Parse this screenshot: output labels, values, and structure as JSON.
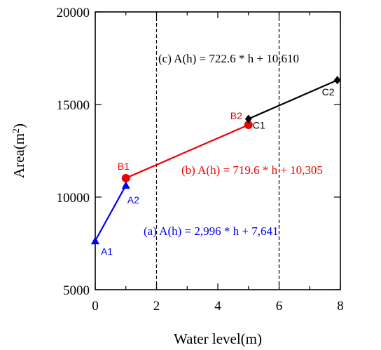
{
  "chart_data": {
    "type": "line",
    "xlabel": "Water level(m)",
    "ylabel_main": "Area(m",
    "ylabel_sup": "2",
    "ylabel_close": ")",
    "xlim": [
      0,
      8
    ],
    "ylim": [
      5000,
      20000
    ],
    "xticks": [
      0,
      2,
      4,
      6,
      8
    ],
    "xticks_minor": [
      1,
      3,
      5,
      7
    ],
    "yticks": [
      5000,
      10000,
      15000,
      20000
    ],
    "xtick_labels": [
      "0",
      "2",
      "4",
      "6",
      "8"
    ],
    "ytick_labels": [
      "5000",
      "10000",
      "15000",
      "20000"
    ],
    "vertical_reference_lines": [
      2,
      6
    ],
    "grid": false,
    "series": [
      {
        "id": "a",
        "color": "#0000ee",
        "marker": "triangle",
        "points": [
          {
            "x": 0,
            "y": 7641,
            "label": "A1"
          },
          {
            "x": 1,
            "y": 10637,
            "label": "A2"
          }
        ],
        "equation": "(a) A(h) = 2,996 * h + 7,641"
      },
      {
        "id": "b",
        "color": "#ee0000",
        "marker": "circle",
        "points": [
          {
            "x": 1,
            "y": 11025,
            "label": "B1"
          },
          {
            "x": 5,
            "y": 13903,
            "label": "B2"
          }
        ],
        "equation": "(b) A(h) = 719.6 * h + 10,305"
      },
      {
        "id": "c",
        "color": "#000000",
        "marker": "diamond",
        "points": [
          {
            "x": 5,
            "y": 14223,
            "label": "C1"
          },
          {
            "x": 7.9,
            "y": 16318,
            "label": "C2"
          }
        ],
        "equation": "(c) A(h) = 722.6 * h + 10,610"
      }
    ]
  }
}
